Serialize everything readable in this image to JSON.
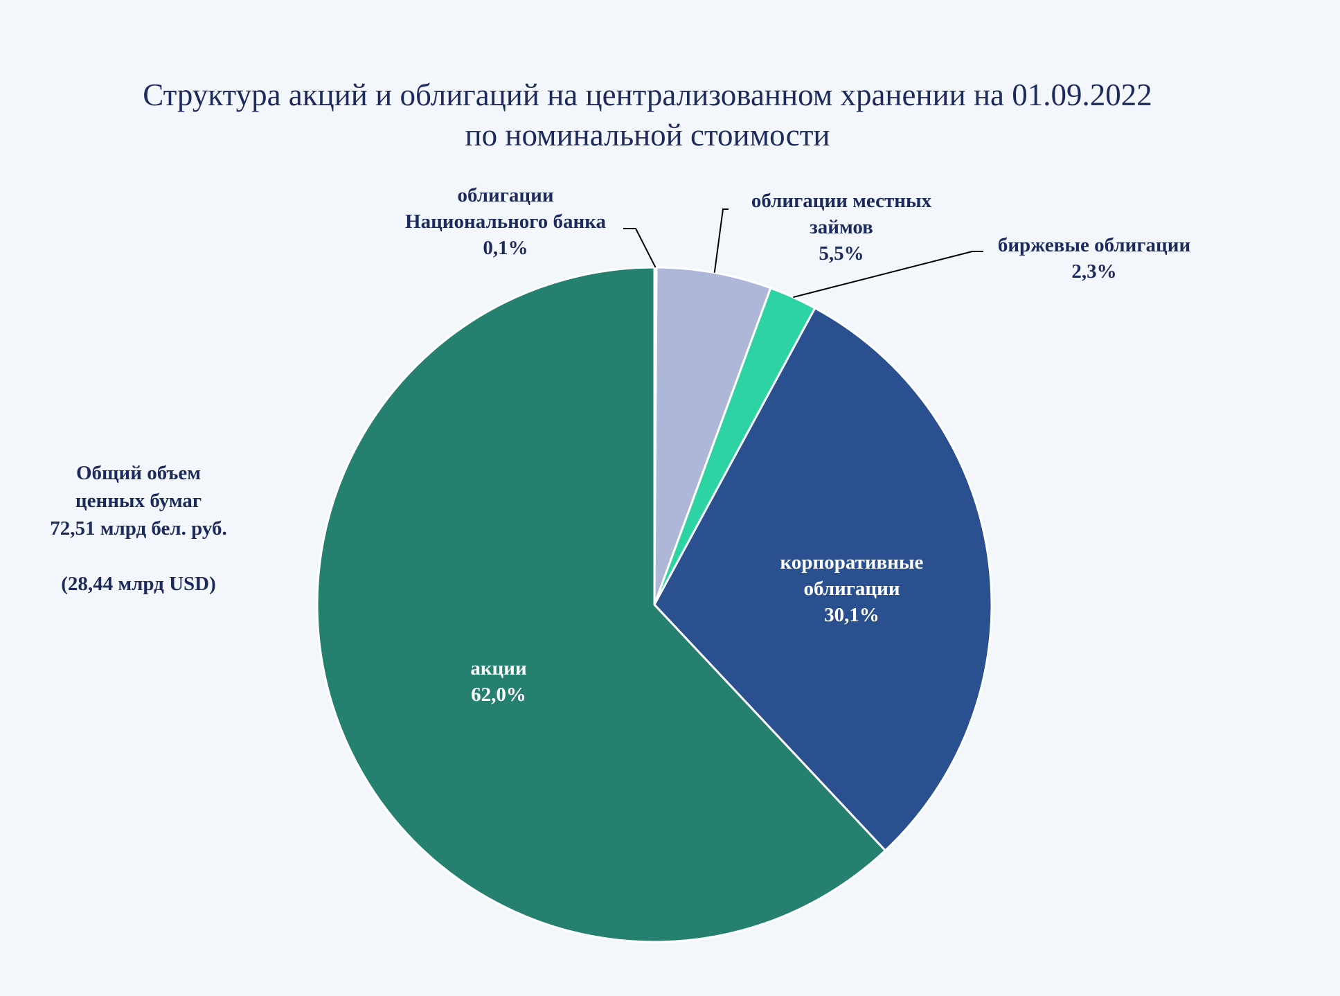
{
  "title": {
    "line1": "Структура акций и облигаций на централизованном хранении на 01.09.2022",
    "line2": "по номинальной стоимости"
  },
  "total_note": {
    "line1": "Общий объем",
    "line2": "ценных бумаг",
    "line3": "72,51  млрд бел. руб.",
    "line4": "(28,44  млрд USD)"
  },
  "chart_data": {
    "type": "pie",
    "start_angle": "12 o'clock",
    "direction": "clockwise",
    "slices": [
      {
        "name": "облигации Национального банка",
        "label_lines": [
          "облигации",
          "Национального банка"
        ],
        "value": 0.1,
        "display": "0,1%",
        "color": "#c9cde6"
      },
      {
        "name": "облигации местных займов",
        "label_lines": [
          "облигации местных",
          "займов"
        ],
        "value": 5.5,
        "display": "5,5%",
        "color": "#aeb7d8"
      },
      {
        "name": "биржевые облигации",
        "label_lines": [
          "биржевые облигации"
        ],
        "value": 2.3,
        "display": "2,3%",
        "color": "#2ed3a4"
      },
      {
        "name": "корпоративные облигации",
        "label_lines": [
          "корпоративные",
          "облигации"
        ],
        "value": 30.1,
        "display": "30,1%",
        "color": "#2a5090"
      },
      {
        "name": "акции",
        "label_lines": [
          "акции"
        ],
        "value": 62.0,
        "display": "62,0%",
        "color": "#258070"
      }
    ]
  }
}
